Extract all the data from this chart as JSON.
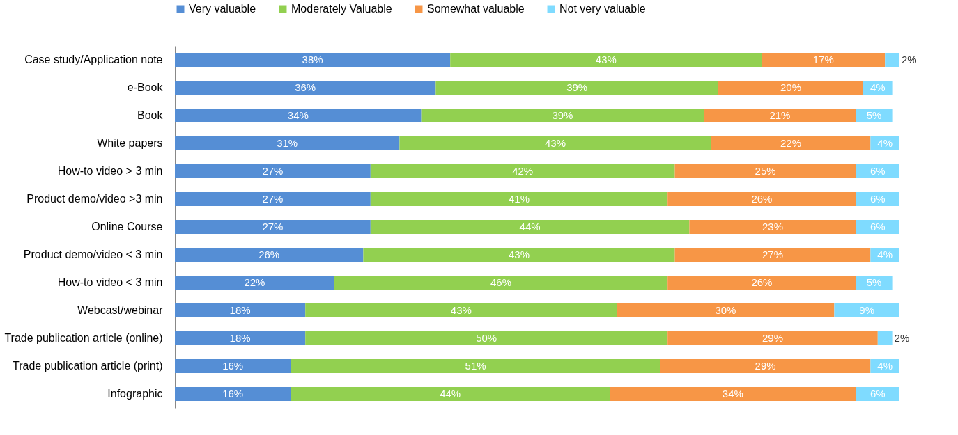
{
  "chart_data": {
    "type": "bar",
    "orientation": "horizontal",
    "stacked": true,
    "legend": "top",
    "grid": false,
    "categories": [
      "Case study/Application note",
      "e-Book",
      "Book",
      "White papers",
      "How-to video > 3 min",
      "Product demo/video >3 min",
      "Online Course",
      "Product demo/video < 3 min",
      "How-to video < 3 min",
      "Webcast/webinar",
      "Trade publication article (online)",
      "Trade publication article (print)",
      "Infographic"
    ],
    "series": [
      {
        "name": "Very valuable",
        "color": "#558ed5",
        "values": [
          38,
          36,
          34,
          31,
          27,
          27,
          27,
          26,
          22,
          18,
          18,
          16,
          16
        ],
        "value_labels": [
          "38%",
          "36%",
          "34%",
          "31%",
          "27%",
          "27%",
          "27%",
          "26%",
          "22%",
          "18%",
          "18%",
          "16%",
          "16%"
        ]
      },
      {
        "name": "Moderately Valuable",
        "color": "#92d050",
        "values": [
          43,
          39,
          39,
          43,
          42,
          41,
          44,
          43,
          46,
          43,
          50,
          51,
          44
        ],
        "value_labels": [
          "43%",
          "39%",
          "39%",
          "43%",
          "42%",
          "41%",
          "44%",
          "43%",
          "46%",
          "43%",
          "50%",
          "51%",
          "44%"
        ]
      },
      {
        "name": "Somewhat valuable",
        "color": "#f79646",
        "values": [
          17,
          20,
          21,
          22,
          25,
          26,
          23,
          27,
          26,
          30,
          29,
          29,
          34
        ],
        "value_labels": [
          "17%",
          "20%",
          "21%",
          "22%",
          "25%",
          "26%",
          "23%",
          "27%",
          "26%",
          "30%",
          "29%",
          "29%",
          "34%"
        ]
      },
      {
        "name": "Not very valuable",
        "color": "#7fdbff",
        "values": [
          2,
          4,
          5,
          4,
          6,
          6,
          6,
          4,
          5,
          9,
          2,
          4,
          6
        ],
        "value_labels": [
          "2%",
          "4%",
          "5%",
          "4%",
          "6%",
          "6%",
          "6%",
          "4%",
          "5%",
          "9%",
          "2%",
          "4%",
          "6%"
        ]
      }
    ]
  }
}
